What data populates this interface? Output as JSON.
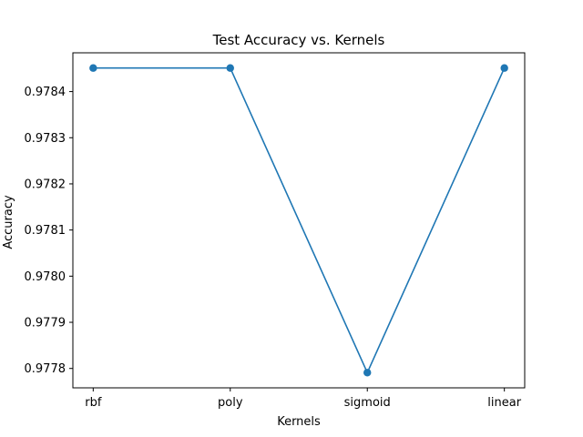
{
  "chart_data": {
    "type": "line",
    "title": "Test Accuracy vs. Kernels",
    "xlabel": "Kernels",
    "ylabel": "Accuracy",
    "categories": [
      "rbf",
      "poly",
      "sigmoid",
      "linear"
    ],
    "series": [
      {
        "values": [
          0.978451,
          0.978451,
          0.977791,
          0.978451
        ],
        "color": "#1f77b4",
        "marker": "circle"
      }
    ],
    "yticks": [
      0.9778,
      0.9779,
      0.978,
      0.9781,
      0.9782,
      0.9783,
      0.9784
    ],
    "ytick_labels": [
      "0.9778",
      "0.9779",
      "0.9780",
      "0.9781",
      "0.9782",
      "0.9783",
      "0.9784"
    ],
    "ylim": [
      0.977758,
      0.978484
    ],
    "grid": false,
    "legend": false
  }
}
